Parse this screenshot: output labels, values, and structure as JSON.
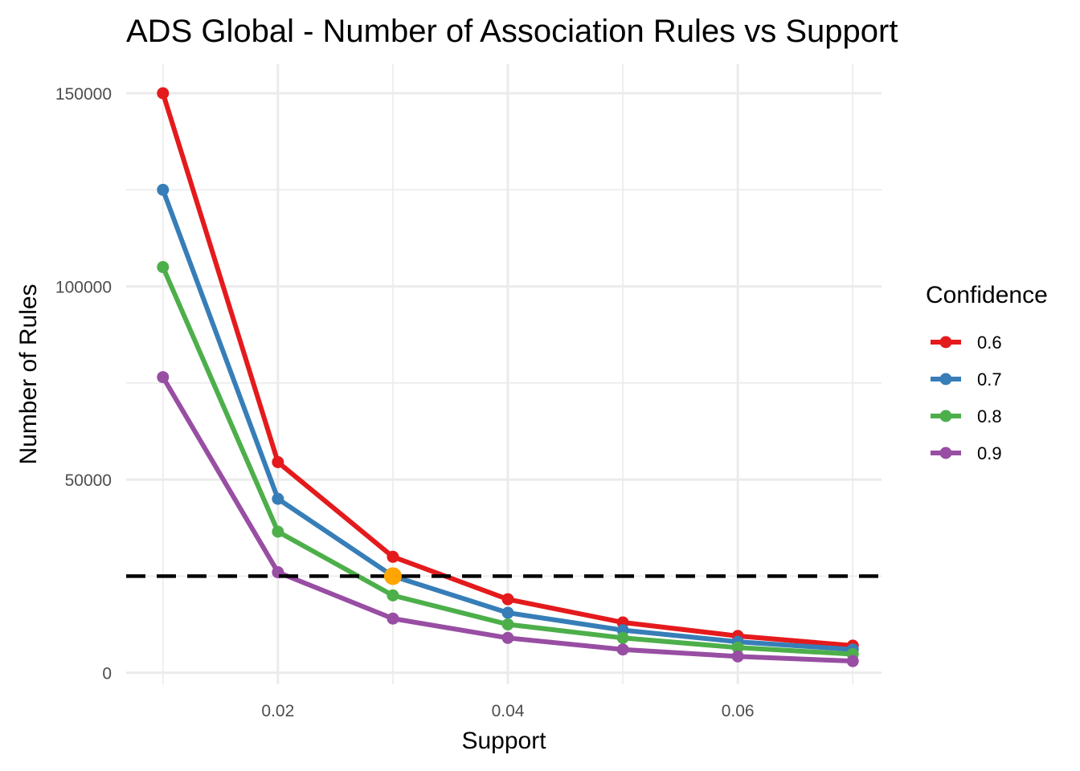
{
  "chart_data": {
    "type": "line",
    "title": "ADS Global - Number of Association Rules vs Support",
    "xlabel": "Support",
    "ylabel": "Number of Rules",
    "x": [
      0.01,
      0.02,
      0.03,
      0.04,
      0.05,
      0.06,
      0.07
    ],
    "xlim": [
      0.0068,
      0.0725
    ],
    "ylim": [
      -3000,
      157500
    ],
    "x_ticks": [
      0.02,
      0.04,
      0.06
    ],
    "x_tick_labels": [
      "0.02",
      "0.04",
      "0.06"
    ],
    "y_ticks": [
      0,
      50000,
      100000,
      150000
    ],
    "y_tick_labels": [
      "0",
      "50000",
      "100000",
      "150000"
    ],
    "grid": true,
    "legend": {
      "title": "Confidence",
      "position": "right"
    },
    "series": [
      {
        "name": "0.6",
        "color": "#e41a1c",
        "values": [
          150000,
          54500,
          30000,
          19000,
          13000,
          9500,
          7000
        ]
      },
      {
        "name": "0.7",
        "color": "#377eb8",
        "values": [
          125000,
          45000,
          25000,
          15500,
          11000,
          8000,
          6000
        ]
      },
      {
        "name": "0.8",
        "color": "#4daf4a",
        "values": [
          105000,
          36500,
          20000,
          12500,
          9000,
          6500,
          4800
        ]
      },
      {
        "name": "0.9",
        "color": "#984ea3",
        "values": [
          76500,
          26000,
          14000,
          9000,
          6000,
          4200,
          3000
        ]
      }
    ],
    "reference_line": {
      "y": 25000,
      "style": "dashed",
      "color": "#000000"
    },
    "highlight_point": {
      "x": 0.03,
      "y": 25000,
      "color": "#ffa500"
    }
  }
}
